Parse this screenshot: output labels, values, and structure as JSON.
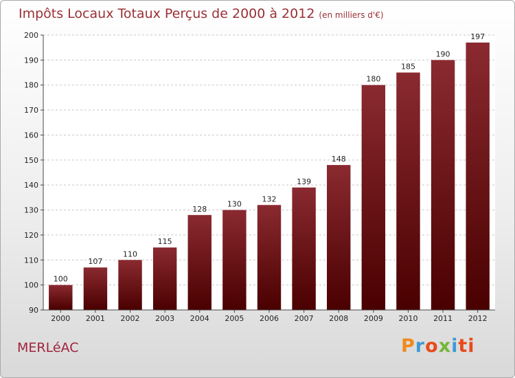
{
  "chart_data": {
    "type": "bar",
    "title": "Impôts Locaux Totaux Perçus de 2000 à 2012",
    "subtitle": "(en milliers d'€)",
    "categories": [
      "2000",
      "2001",
      "2002",
      "2003",
      "2004",
      "2005",
      "2006",
      "2007",
      "2008",
      "2009",
      "2010",
      "2011",
      "2012"
    ],
    "values": [
      100,
      107,
      110,
      115,
      128,
      130,
      132,
      139,
      148,
      180,
      185,
      190,
      197
    ],
    "ylim": [
      90,
      200
    ],
    "yticks": [
      90,
      100,
      110,
      120,
      130,
      140,
      150,
      160,
      170,
      180,
      190,
      200
    ],
    "grid": true,
    "bar_color_top": "#8a2a30",
    "bar_color_bottom": "#4a0000"
  },
  "footer": {
    "place": "MERLéAC",
    "logo": [
      "P",
      "r",
      "o",
      "x",
      "i",
      "ti"
    ]
  }
}
